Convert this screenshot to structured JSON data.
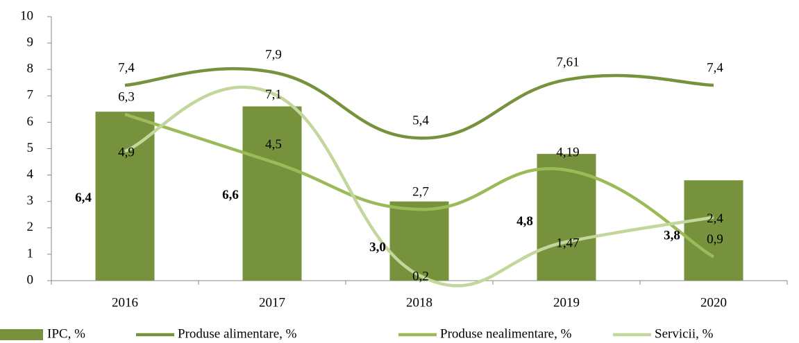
{
  "chart_data": {
    "type": "bar_line",
    "categories": [
      "2016",
      "2017",
      "2018",
      "2019",
      "2020"
    ],
    "series": [
      {
        "name": "IPC, %",
        "type": "bar",
        "color": "#76923c",
        "values": [
          6.4,
          6.6,
          3.0,
          4.8,
          3.8
        ],
        "value_labels": [
          "6,4",
          "6,6",
          "3,0",
          "4,8",
          "3,8"
        ]
      },
      {
        "name": "Produse alimentare, %",
        "type": "line",
        "color": "#76923c",
        "values": [
          7.4,
          7.9,
          5.4,
          7.61,
          7.4
        ],
        "value_labels": [
          "7,4",
          "7,9",
          "5,4",
          "7,61",
          "7,4"
        ]
      },
      {
        "name": "Produse nealimentare, %",
        "type": "line",
        "color": "#9bbb59",
        "values": [
          6.3,
          4.5,
          2.7,
          4.19,
          0.9
        ],
        "value_labels": [
          "6,3",
          "4,5",
          "2,7",
          "4,19",
          "0,9"
        ]
      },
      {
        "name": "Servicii, %",
        "type": "line",
        "color": "#c3d69b",
        "values": [
          4.9,
          7.1,
          0.2,
          1.47,
          2.4
        ],
        "value_labels": [
          "4,9",
          "7,1",
          "0,2",
          "1,47",
          "2,4"
        ]
      }
    ],
    "ylim": [
      0,
      10
    ],
    "yticks": [
      0,
      1,
      2,
      3,
      4,
      5,
      6,
      7,
      8,
      9,
      10
    ],
    "legend": "bottom"
  }
}
